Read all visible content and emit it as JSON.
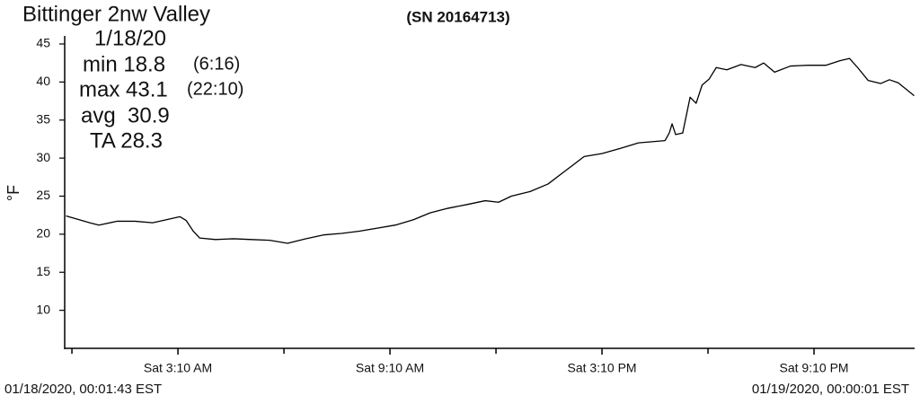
{
  "chart_data": {
    "type": "line",
    "title": "Bittinger 2nw Valley",
    "subtitle": "(SN 20164713)",
    "annotations": [
      "1/18/20",
      "min 18.8",
      "(6:16)",
      "max 43.1",
      "(22:10)",
      "avg  30.9",
      "TA 28.3"
    ],
    "ylabel": "°F",
    "footer_left": "01/18/2020, 00:01:43 EST",
    "footer_right": "01/19/2020, 00:00:01 EST",
    "color": "#000000",
    "x": [
      0,
      0.67,
      0.93,
      1.44,
      1.95,
      2.45,
      2.84,
      3.22,
      3.4,
      3.6,
      3.78,
      4.23,
      4.74,
      5.25,
      5.76,
      6.27,
      6.78,
      7.28,
      7.79,
      8.3,
      8.81,
      9.32,
      9.83,
      10.3,
      10.8,
      11.35,
      11.86,
      12.24,
      12.6,
      13.13,
      13.64,
      14.15,
      14.66,
      15.17,
      15.7,
      16.2,
      16.95,
      17.07,
      17.15,
      17.25,
      17.45,
      17.66,
      17.83,
      18.0,
      18.2,
      18.4,
      18.7,
      19.1,
      19.5,
      19.74,
      20.05,
      20.5,
      21.0,
      21.5,
      21.9,
      22.17,
      22.4,
      22.7,
      23.05,
      23.3,
      23.55,
      24
    ],
    "values": [
      22.4,
      21.5,
      21.2,
      21.7,
      21.7,
      21.5,
      21.9,
      22.3,
      21.8,
      20.4,
      19.5,
      19.3,
      19.4,
      19.3,
      19.2,
      18.8,
      19.4,
      19.9,
      20.1,
      20.4,
      20.8,
      21.2,
      21.9,
      22.8,
      23.4,
      23.9,
      24.4,
      24.2,
      25.0,
      25.6,
      26.6,
      28.4,
      30.2,
      30.6,
      31.3,
      32.0,
      32.3,
      33.3,
      34.5,
      33.1,
      33.3,
      38.0,
      37.2,
      39.6,
      40.4,
      41.9,
      41.6,
      42.3,
      41.9,
      42.5,
      41.3,
      42.1,
      42.2,
      42.2,
      42.8,
      43.1,
      41.9,
      40.2,
      39.8,
      40.3,
      39.9,
      38.2
    ],
    "xlim": [
      0,
      24
    ],
    "xticks": [
      {
        "value": 3.1667,
        "label": "Sat 3:10 AM"
      },
      {
        "value": 9.1667,
        "label": "Sat 9:10 AM"
      },
      {
        "value": 15.1667,
        "label": "Sat 3:10 PM"
      },
      {
        "value": 21.1667,
        "label": "Sat 9:10 PM"
      }
    ],
    "xminorticks": [
      0.1667,
      6.1667,
      12.1667,
      18.1667
    ],
    "ylim": [
      5,
      46
    ],
    "yticks": [
      10,
      15,
      20,
      25,
      30,
      35,
      40,
      45
    ],
    "grid": false
  }
}
